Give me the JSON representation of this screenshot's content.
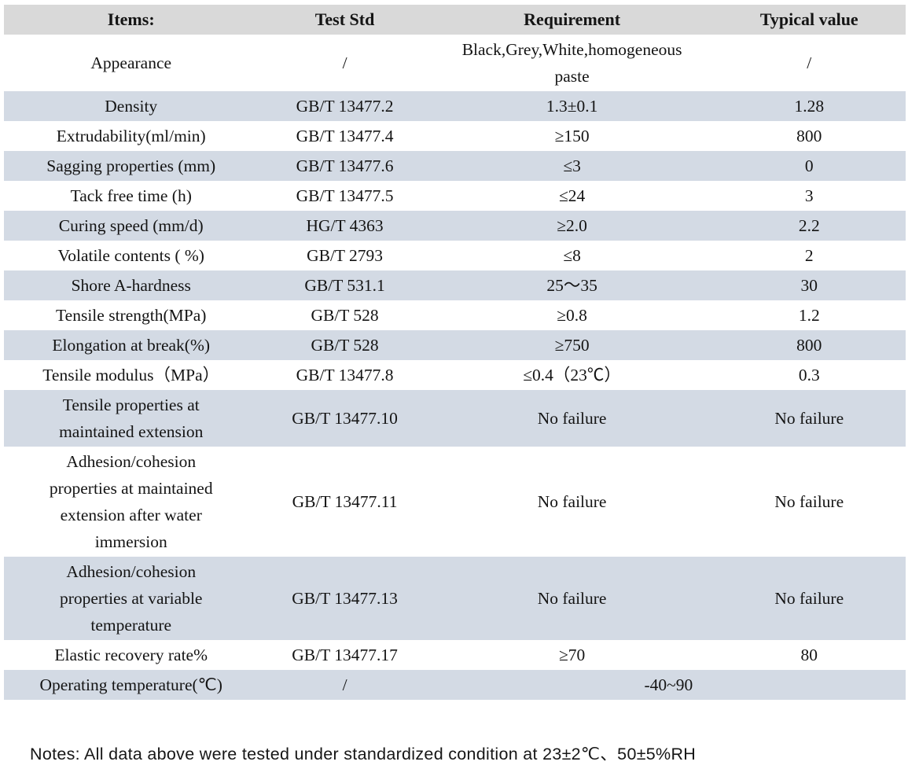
{
  "colors": {
    "header_bg": "#d9d9d9",
    "stripe_bg": "#d3dae4",
    "text": "#141414"
  },
  "table": {
    "columns": [
      "Items:",
      "Test Std",
      "Requirement",
      "Typical value"
    ],
    "rows": [
      {
        "item": "Appearance",
        "std": "/",
        "req": "Black,Grey,White,homogeneous\npaste",
        "typ": "/"
      },
      {
        "item": "Density",
        "std": "GB/T 13477.2",
        "req": "1.3±0.1",
        "typ": "1.28"
      },
      {
        "item": "Extrudability(ml/min)",
        "std": "GB/T 13477.4",
        "req": "≥150",
        "typ": "800"
      },
      {
        "item": "Sagging properties (mm)",
        "std": "GB/T 13477.6",
        "req": "≤3",
        "typ": "0"
      },
      {
        "item": "Tack free time (h)",
        "std": "GB/T 13477.5",
        "req": "≤24",
        "typ": "3"
      },
      {
        "item": "Curing speed (mm/d)",
        "std": "HG/T 4363",
        "req": "≥2.0",
        "typ": "2.2"
      },
      {
        "item": "Volatile contents ( %)",
        "std": "GB/T 2793",
        "req": "≤8",
        "typ": "2"
      },
      {
        "item": "Shore A-hardness",
        "std": "GB/T 531.1",
        "req": "25～35",
        "typ": "30"
      },
      {
        "item": "Tensile strength(MPa)",
        "std": "GB/T 528",
        "req": "≥0.8",
        "typ": "1.2"
      },
      {
        "item": "Elongation at break(%)",
        "std": "GB/T 528",
        "req": "≥750",
        "typ": "800"
      },
      {
        "item": "Tensile modulus（MPa）",
        "std": "GB/T 13477.8",
        "req": "≤0.4（23℃）",
        "typ": "0.3"
      },
      {
        "item": "Tensile properties at\nmaintained extension",
        "std": "GB/T 13477.10",
        "req": "No failure",
        "typ": "No failure"
      },
      {
        "item": "Adhesion/cohesion\nproperties at maintained\nextension after water\nimmersion",
        "std": "GB/T 13477.11",
        "req": "No failure",
        "typ": "No failure"
      },
      {
        "item": "Adhesion/cohesion\nproperties at variable\ntemperature",
        "std": "GB/T 13477.13",
        "req": "No failure",
        "typ": "No failure"
      },
      {
        "item": "Elastic recovery rate%",
        "std": "GB/T 13477.17",
        "req": "≥70",
        "typ": "80"
      },
      {
        "item": "Operating temperature(℃)",
        "std": "/",
        "req": "-40~90",
        "span": 2
      }
    ]
  },
  "notes": "Notes: All data above were tested under standardized condition at 23±2℃、50±5%RH"
}
